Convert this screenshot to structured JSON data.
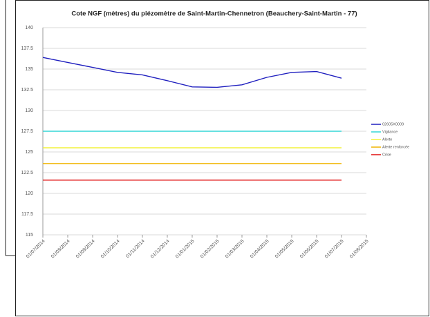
{
  "chart_data": {
    "type": "line",
    "title": "Cote NGF (mètres) du piézomètre de Saint-Martin-Chennetron  (Beauchery-Saint-Martin  - 77)",
    "categories": [
      "01/07/2014",
      "01/08/2014",
      "01/09/2014",
      "01/10/2014",
      "01/11/2014",
      "01/12/2014",
      "01/01/2015",
      "01/02/2015",
      "01/03/2015",
      "01/04/2015",
      "01/05/2015",
      "01/06/2015",
      "01/07/2015",
      "01/08/2015"
    ],
    "series": [
      {
        "name": "02605X0009",
        "color": "#1f1fbf",
        "values": [
          136.4,
          135.8,
          135.2,
          134.6,
          134.3,
          133.6,
          132.85,
          132.8,
          133.1,
          134.0,
          134.6,
          134.7,
          133.9,
          null
        ]
      },
      {
        "name": "Vigilance",
        "color": "#33d6d6",
        "values": [
          127.5,
          127.5,
          127.5,
          127.5,
          127.5,
          127.5,
          127.5,
          127.5,
          127.5,
          127.5,
          127.5,
          127.5,
          127.5,
          null
        ]
      },
      {
        "name": "Alerte",
        "color": "#f2f23a",
        "values": [
          125.5,
          125.5,
          125.5,
          125.5,
          125.5,
          125.5,
          125.5,
          125.5,
          125.5,
          125.5,
          125.5,
          125.5,
          125.5,
          null
        ]
      },
      {
        "name": "Alerte renforcée",
        "color": "#f0b400",
        "values": [
          123.6,
          123.6,
          123.6,
          123.6,
          123.6,
          123.6,
          123.6,
          123.6,
          123.6,
          123.6,
          123.6,
          123.6,
          123.6,
          null
        ]
      },
      {
        "name": "Crise",
        "color": "#e01010",
        "values": [
          121.6,
          121.6,
          121.6,
          121.6,
          121.6,
          121.6,
          121.6,
          121.6,
          121.6,
          121.6,
          121.6,
          121.6,
          121.6,
          null
        ]
      }
    ],
    "ylim": [
      115,
      140
    ],
    "yticks": [
      115,
      117.5,
      120,
      122.5,
      125,
      127.5,
      130,
      132.5,
      135,
      137.5,
      140
    ],
    "grid": true,
    "legend": "right"
  }
}
